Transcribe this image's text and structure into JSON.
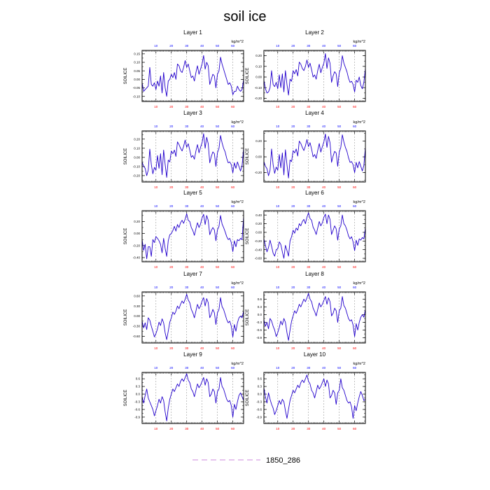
{
  "figure": {
    "title": "soil ice",
    "legend_label": "1850_286",
    "legend_color": "#cc88dd"
  },
  "colors": {
    "line": "#2200cc",
    "top_tick_labels": "#0000ff",
    "bottom_tick_labels": "#ff0000",
    "grid": "#999999",
    "text": "#000000"
  },
  "chart_data": [
    {
      "type": "line",
      "title": "Layer 1",
      "units": "kg/m^2",
      "ylabel": "SOILICE",
      "x_ticks": [
        10,
        20,
        30,
        40,
        50,
        60
      ],
      "xlim": [
        1,
        67
      ],
      "y_ticks": [
        -0.1,
        -0.05,
        0.0,
        0.05,
        0.1,
        0.15
      ],
      "y_tick_labels": [
        "-0.10",
        "-0.05",
        "0.00",
        "0.05",
        "0.10",
        "0.15"
      ],
      "ylim": [
        -0.13,
        0.17
      ],
      "series": [
        {
          "values": [
            -0.02,
            -0.07,
            -0.06,
            -0.05,
            -0.04,
            0.07,
            -0.03,
            -0.04,
            -0.02,
            -0.06,
            -0.01,
            -0.04,
            0.02,
            -0.08,
            0.04,
            -0.05,
            -0.1,
            -0.01,
            0.0,
            0.03,
            0.01,
            0.04,
            0.0,
            0.09,
            0.08,
            0.05,
            0.04,
            0.07,
            0.11,
            0.07,
            0.09,
            0.05,
            0.01,
            0.02,
            -0.01,
            0.04,
            0.08,
            0.03,
            0.06,
            0.09,
            0.14,
            0.06,
            0.1,
            0.08,
            -0.03,
            0.0,
            0.03,
            0.02,
            -0.05,
            0.03,
            0.05,
            0.13,
            0.09,
            0.06,
            0.03,
            0.0,
            -0.03,
            -0.02,
            -0.04,
            -0.09,
            -0.07,
            -0.07,
            -0.04,
            -0.06,
            -0.07,
            -0.06,
            0.0
          ]
        }
      ]
    },
    {
      "type": "line",
      "title": "Layer 2",
      "units": "kg/m^2",
      "ylabel": "SOILICE",
      "x_ticks": [
        10,
        20,
        30,
        40,
        50,
        60
      ],
      "xlim": [
        1,
        67
      ],
      "y_ticks": [
        -0.2,
        -0.1,
        0.0,
        0.1,
        0.2
      ],
      "y_tick_labels": [
        "-0.20",
        "-0.10",
        "0.00",
        "0.10",
        "0.20"
      ],
      "ylim": [
        -0.23,
        0.25
      ],
      "series": [
        {
          "values": [
            -0.03,
            -0.11,
            -0.15,
            -0.14,
            -0.1,
            0.06,
            -0.07,
            -0.09,
            -0.05,
            -0.11,
            0.02,
            -0.1,
            0.03,
            -0.14,
            0.06,
            -0.07,
            -0.17,
            -0.02,
            -0.04,
            0.06,
            0.03,
            0.07,
            0.01,
            0.14,
            0.12,
            0.08,
            0.06,
            0.1,
            0.16,
            0.09,
            0.13,
            0.07,
            0.0,
            0.02,
            -0.02,
            0.06,
            0.12,
            0.04,
            0.09,
            0.13,
            0.22,
            0.08,
            0.18,
            0.13,
            -0.05,
            0.01,
            0.05,
            0.03,
            -0.09,
            0.04,
            0.08,
            0.2,
            0.13,
            0.09,
            0.05,
            -0.01,
            -0.05,
            -0.04,
            -0.07,
            -0.14,
            -0.03,
            -0.05,
            0.0,
            -0.08,
            -0.11,
            -0.05,
            0.08
          ]
        }
      ]
    },
    {
      "type": "line",
      "title": "Layer 3",
      "units": "kg/m^2",
      "ylabel": "SOILICE",
      "x_ticks": [
        10,
        20,
        30,
        40,
        50,
        60
      ],
      "xlim": [
        1,
        67
      ],
      "y_ticks": [
        -0.2,
        -0.1,
        0.0,
        0.1,
        0.2
      ],
      "y_tick_labels": [
        "-0.20",
        "-0.10",
        "0.00",
        "0.10",
        "0.20"
      ],
      "ylim": [
        -0.27,
        0.29
      ],
      "series": [
        {
          "values": [
            -0.05,
            -0.1,
            -0.12,
            -0.2,
            -0.14,
            0.09,
            -0.08,
            -0.18,
            -0.11,
            -0.14,
            0.02,
            -0.12,
            0.04,
            -0.19,
            0.08,
            -0.08,
            -0.22,
            -0.03,
            -0.05,
            0.07,
            0.04,
            0.08,
            0.01,
            0.17,
            0.14,
            0.1,
            0.07,
            0.12,
            0.19,
            0.11,
            0.15,
            0.08,
            0.0,
            0.02,
            -0.02,
            0.07,
            0.14,
            0.05,
            0.11,
            0.16,
            0.26,
            0.1,
            0.22,
            0.15,
            -0.06,
            0.01,
            0.06,
            0.04,
            -0.1,
            0.05,
            0.1,
            0.24,
            0.16,
            0.1,
            0.06,
            -0.01,
            -0.06,
            -0.05,
            -0.08,
            -0.17,
            -0.06,
            -0.12,
            -0.05,
            -0.1,
            -0.15,
            -0.09,
            0.1
          ]
        }
      ]
    },
    {
      "type": "line",
      "title": "Layer 4",
      "units": "kg/m^2",
      "ylabel": "SOILICE",
      "x_ticks": [
        10,
        20,
        30,
        40,
        50,
        60
      ],
      "xlim": [
        1,
        67
      ],
      "y_ticks": [
        -0.2,
        0.0,
        0.2
      ],
      "y_tick_labels": [
        "-0.20",
        "0.00",
        "0.20"
      ],
      "ylim": [
        -0.32,
        0.33
      ],
      "series": [
        {
          "values": [
            -0.06,
            -0.12,
            -0.15,
            -0.24,
            -0.17,
            0.1,
            -0.1,
            -0.21,
            -0.13,
            -0.17,
            0.03,
            -0.14,
            0.05,
            -0.23,
            0.09,
            -0.1,
            -0.27,
            -0.04,
            -0.06,
            0.08,
            0.05,
            0.1,
            0.01,
            0.2,
            0.17,
            0.12,
            0.08,
            0.14,
            0.22,
            0.13,
            0.18,
            0.1,
            0.0,
            0.03,
            -0.02,
            0.08,
            0.17,
            0.06,
            0.13,
            0.19,
            0.29,
            0.12,
            0.26,
            0.18,
            -0.07,
            0.01,
            0.07,
            0.05,
            -0.12,
            0.06,
            0.12,
            0.28,
            0.19,
            0.12,
            0.07,
            -0.01,
            -0.07,
            -0.06,
            -0.1,
            -0.2,
            -0.07,
            -0.14,
            -0.06,
            -0.12,
            -0.18,
            -0.11,
            0.12
          ]
        }
      ]
    },
    {
      "type": "line",
      "title": "Layer 5",
      "units": "kg/m^2",
      "ylabel": "SOILICE",
      "x_ticks": [
        10,
        20,
        30,
        40,
        50,
        60
      ],
      "xlim": [
        1,
        67
      ],
      "y_ticks": [
        -0.4,
        -0.2,
        0.0,
        0.2
      ],
      "y_tick_labels": [
        "-0.40",
        "-0.20",
        "0.00",
        "0.20"
      ],
      "ylim": [
        -0.47,
        0.38
      ],
      "series": [
        {
          "values": [
            -0.1,
            -0.28,
            -0.18,
            -0.42,
            -0.22,
            -0.22,
            -0.38,
            -0.1,
            -0.15,
            -0.05,
            -0.08,
            -0.12,
            -0.18,
            -0.32,
            -0.08,
            -0.25,
            -0.38,
            -0.12,
            -0.02,
            0.0,
            0.05,
            0.12,
            0.04,
            0.15,
            0.1,
            0.18,
            0.22,
            0.17,
            0.24,
            0.33,
            0.22,
            0.2,
            0.1,
            0.05,
            -0.03,
            0.08,
            0.18,
            0.1,
            0.16,
            0.26,
            0.32,
            0.15,
            0.3,
            0.22,
            -0.02,
            0.05,
            0.1,
            0.06,
            -0.12,
            0.06,
            0.12,
            0.3,
            0.16,
            0.1,
            0.03,
            -0.05,
            -0.1,
            -0.08,
            -0.15,
            -0.3,
            -0.12,
            -0.22,
            -0.1,
            -0.12,
            -0.08,
            -0.1,
            0.28
          ]
        }
      ]
    },
    {
      "type": "line",
      "title": "Layer 6",
      "units": "kg/m^2",
      "ylabel": "SOILICE",
      "x_ticks": [
        10,
        20,
        30,
        40,
        50,
        60
      ],
      "xlim": [
        1,
        67
      ],
      "y_ticks": [
        -0.6,
        -0.4,
        -0.2,
        0.0,
        0.2,
        0.4
      ],
      "y_tick_labels": [
        "-0.60",
        "-0.40",
        "-0.20",
        "0.00",
        "0.20",
        "0.40"
      ],
      "ylim": [
        -0.68,
        0.5
      ],
      "series": [
        {
          "values": [
            -0.15,
            -0.3,
            -0.45,
            -0.35,
            -0.18,
            -0.32,
            -0.48,
            -0.55,
            -0.4,
            -0.38,
            -0.22,
            -0.28,
            -0.45,
            -0.6,
            -0.3,
            -0.42,
            -0.55,
            -0.2,
            -0.1,
            0.05,
            -0.02,
            0.1,
            0.05,
            0.2,
            0.15,
            0.25,
            0.3,
            0.2,
            0.35,
            0.45,
            0.32,
            0.28,
            0.12,
            0.05,
            -0.05,
            0.1,
            0.25,
            0.15,
            0.22,
            0.35,
            0.42,
            0.2,
            0.4,
            0.3,
            -0.05,
            0.05,
            0.15,
            0.08,
            -0.18,
            0.08,
            0.15,
            0.4,
            0.2,
            0.15,
            0.05,
            -0.08,
            -0.15,
            -0.1,
            -0.22,
            -0.42,
            -0.18,
            -0.3,
            -0.15,
            -0.18,
            -0.12,
            -0.15,
            0.1
          ]
        }
      ]
    },
    {
      "type": "line",
      "title": "Layer 7",
      "units": "kg/m^2",
      "ylabel": "SOILICE",
      "x_ticks": [
        10,
        20,
        30,
        40,
        50,
        60
      ],
      "xlim": [
        1,
        67
      ],
      "y_ticks": [
        -0.6,
        -0.3,
        0.0,
        0.3,
        0.6
      ],
      "y_tick_labels": [
        "-0.60",
        "-0.30",
        "0.00",
        "0.30",
        "0.60"
      ],
      "ylim": [
        -0.8,
        0.72
      ],
      "series": [
        {
          "values": [
            -0.15,
            -0.35,
            -0.2,
            -0.4,
            -0.05,
            -0.12,
            -0.3,
            -0.45,
            -0.62,
            -0.52,
            -0.38,
            -0.18,
            -0.28,
            -0.08,
            -0.2,
            -0.5,
            -0.7,
            -0.45,
            -0.18,
            -0.05,
            0.12,
            0.05,
            0.15,
            0.3,
            0.22,
            0.35,
            0.45,
            0.38,
            0.5,
            0.65,
            0.48,
            0.4,
            0.2,
            0.1,
            -0.05,
            0.15,
            0.35,
            0.22,
            0.3,
            0.45,
            0.55,
            0.3,
            0.52,
            0.4,
            -0.05,
            0.05,
            0.2,
            0.1,
            -0.25,
            0.1,
            0.2,
            0.55,
            0.28,
            0.2,
            0.05,
            -0.1,
            -0.2,
            -0.15,
            -0.3,
            -0.62,
            -0.25,
            -0.45,
            -0.2,
            -0.05,
            0.0,
            -0.05,
            0.15
          ]
        }
      ]
    },
    {
      "type": "line",
      "title": "Layer 8",
      "units": "kg/m^2",
      "ylabel": "SOILICE",
      "x_ticks": [
        10,
        20,
        30,
        40,
        50,
        60
      ],
      "xlim": [
        1,
        67
      ],
      "y_ticks": [
        -0.9,
        -0.6,
        -0.3,
        0.0,
        0.3,
        0.6
      ],
      "y_tick_labels": [
        "-0.9",
        "-0.6",
        "-0.3",
        "0.0",
        "0.3",
        "0.6"
      ],
      "ylim": [
        -1.1,
        0.88
      ],
      "series": [
        {
          "values": [
            -0.2,
            -0.45,
            -0.3,
            -0.55,
            -0.15,
            -0.25,
            -0.45,
            -0.6,
            -0.85,
            -0.7,
            -0.5,
            -0.25,
            -0.4,
            -0.15,
            -0.3,
            -0.7,
            -1.0,
            -0.6,
            -0.25,
            -0.05,
            0.15,
            0.05,
            0.2,
            0.4,
            0.3,
            0.45,
            0.6,
            0.5,
            0.65,
            0.82,
            0.6,
            0.5,
            0.25,
            0.12,
            -0.05,
            0.2,
            0.45,
            0.3,
            0.4,
            0.55,
            0.7,
            0.4,
            0.65,
            0.5,
            -0.05,
            0.05,
            0.25,
            0.15,
            -0.3,
            0.15,
            0.25,
            0.7,
            0.35,
            0.25,
            0.05,
            -0.15,
            -0.25,
            -0.2,
            -0.4,
            -0.85,
            -0.35,
            -0.6,
            -0.3,
            -0.1,
            0.0,
            -0.1,
            0.2
          ]
        }
      ]
    },
    {
      "type": "line",
      "title": "Layer 9",
      "units": "kg/m^2",
      "ylabel": "SOILICE",
      "x_ticks": [
        10,
        20,
        30,
        40,
        50,
        60
      ],
      "xlim": [
        1,
        67
      ],
      "y_ticks": [
        -0.9,
        -0.6,
        -0.3,
        0.0,
        0.3,
        0.6
      ],
      "y_tick_labels": [
        "-0.9",
        "-0.6",
        "-0.3",
        "0.0",
        "0.3",
        "0.6"
      ],
      "ylim": [
        -1.15,
        0.85
      ],
      "series": [
        {
          "values": [
            -0.1,
            -0.35,
            -0.05,
            0.2,
            -0.15,
            -0.3,
            -0.45,
            -0.6,
            -0.85,
            -0.65,
            -0.45,
            -0.2,
            -0.35,
            -0.1,
            -0.25,
            -0.7,
            -1.05,
            -0.55,
            -0.2,
            0.0,
            0.2,
            0.1,
            0.25,
            0.4,
            0.3,
            0.5,
            0.6,
            0.5,
            0.65,
            0.8,
            0.55,
            0.45,
            0.2,
            0.1,
            -0.1,
            0.15,
            0.4,
            0.25,
            0.35,
            0.5,
            0.65,
            0.35,
            0.6,
            0.45,
            -0.1,
            0.0,
            0.2,
            0.1,
            -0.35,
            0.1,
            0.2,
            0.65,
            0.3,
            0.2,
            0.0,
            -0.2,
            -0.3,
            -0.25,
            -0.45,
            -0.9,
            -0.4,
            -0.6,
            -0.3,
            -0.05,
            0.05,
            -0.1,
            -0.25
          ]
        }
      ]
    },
    {
      "type": "line",
      "title": "Layer 10",
      "units": "kg/m^2",
      "ylabel": "SOILICE",
      "x_ticks": [
        10,
        20,
        30,
        40,
        50,
        60
      ],
      "xlim": [
        1,
        67
      ],
      "y_ticks": [
        -0.9,
        -0.6,
        -0.3,
        0.0,
        0.3,
        0.6
      ],
      "y_tick_labels": [
        "-0.9",
        "-0.6",
        "-0.3",
        "0.0",
        "0.3",
        "0.6"
      ],
      "ylim": [
        -1.15,
        0.85
      ],
      "series": [
        {
          "values": [
            0.25,
            -0.1,
            -0.35,
            0.05,
            -0.2,
            -0.4,
            -0.55,
            -0.8,
            -0.65,
            -0.45,
            -0.25,
            -0.4,
            -0.2,
            -0.3,
            -0.65,
            -0.95,
            -0.6,
            -0.25,
            -0.05,
            0.15,
            0.05,
            0.2,
            0.35,
            0.25,
            0.45,
            0.55,
            0.45,
            0.6,
            0.75,
            0.5,
            0.4,
            0.15,
            0.05,
            -0.15,
            0.1,
            0.35,
            0.2,
            0.3,
            0.45,
            0.6,
            0.3,
            0.55,
            0.4,
            -0.15,
            -0.05,
            0.15,
            0.05,
            -0.4,
            0.05,
            0.15,
            0.6,
            0.25,
            0.15,
            -0.05,
            -0.25,
            -0.35,
            -0.3,
            -0.5,
            -0.95,
            -0.45,
            -0.65,
            -0.35,
            -0.1,
            0.1,
            -0.05,
            -0.25,
            -0.2
          ]
        }
      ]
    }
  ]
}
